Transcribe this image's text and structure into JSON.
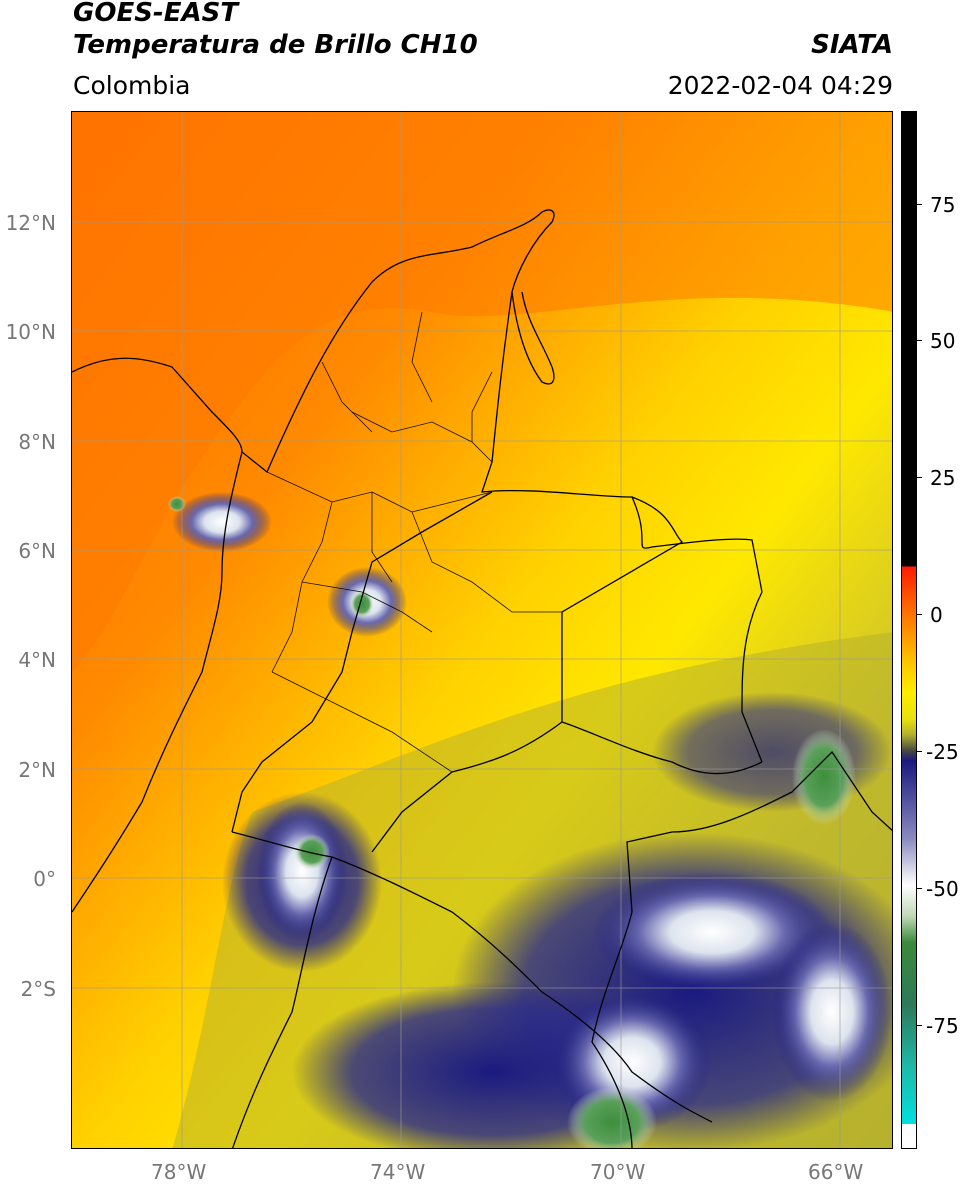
{
  "header": {
    "title_line1": "GOES-EAST",
    "title_line2": "Temperatura de Brillo CH10",
    "agency": "SIATA",
    "region": "Colombia",
    "datetime": "2022-02-04 04:29"
  },
  "map": {
    "lat_ticks": [
      "12°N",
      "10°N",
      "8°N",
      "6°N",
      "4°N",
      "2°N",
      "0°",
      "2°S"
    ],
    "lon_ticks": [
      "78°W",
      "74°W",
      "70°W",
      "66°W"
    ],
    "gridlines": true
  },
  "colorbar": {
    "ticks": [
      "75",
      "50",
      "25",
      "0",
      "-25",
      "-50",
      "-75"
    ],
    "colors": {
      "above_10": "#000000",
      "red": "#ff2a00",
      "orange": "#ff8c00",
      "yellow": "#ffee00",
      "olive": "#b0b030",
      "navy": "#1a1a80",
      "white": "#ffffff",
      "green": "#2e7d32",
      "cyan": "#00d7d7"
    }
  }
}
